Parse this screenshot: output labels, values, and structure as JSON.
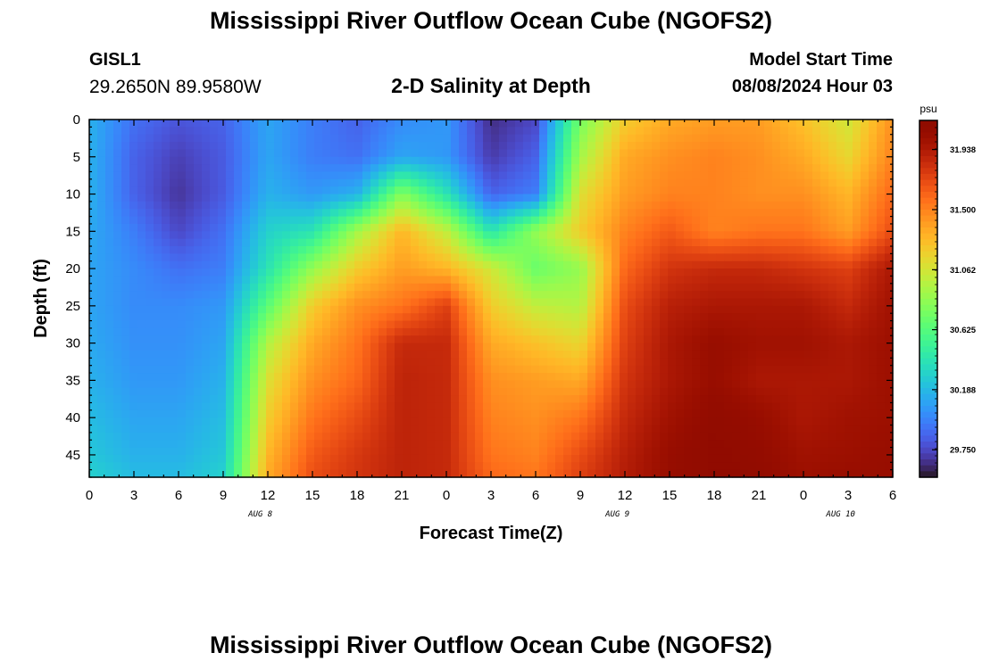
{
  "page": {
    "title": "Mississippi River Outflow Ocean Cube (NGOFS2)",
    "station": "GISL1",
    "coordinates": "29.2650N  89.9580W",
    "subtitle": "2-D Salinity at Depth",
    "model_start_label": "Model Start Time",
    "model_start_value": "08/08/2024 Hour 03",
    "bottom_title": "Mississippi River Outflow Ocean Cube (NGOFS2)"
  },
  "chart_data": {
    "type": "heatmap",
    "title": "2-D Salinity at Depth",
    "xlabel": "Forecast Time(Z)",
    "ylabel": "Depth (ft)",
    "x_tick_labels": [
      "0",
      "3",
      "6",
      "9",
      "12",
      "15",
      "18",
      "21",
      "0",
      "3",
      "6",
      "9",
      "12",
      "15",
      "18",
      "21",
      "0",
      "3",
      "6"
    ],
    "x_date_labels": [
      {
        "label": "AUG 8",
        "hour": 11.5
      },
      {
        "label": "AUG 9",
        "hour": 35.5
      },
      {
        "label": "AUG 10",
        "hour": 50.5
      }
    ],
    "xlim_hours": [
      0,
      54
    ],
    "y_ticks": [
      0,
      5,
      10,
      15,
      20,
      25,
      30,
      35,
      40,
      45
    ],
    "ylim_ft": [
      0,
      48
    ],
    "y_inverted": true,
    "colorbar": {
      "unit": "psu",
      "ticks": [
        "31.938",
        "31.500",
        "31.062",
        "30.625",
        "30.188",
        "29.750"
      ],
      "tick_values": [
        31.938,
        31.5,
        31.062,
        30.625,
        30.188,
        29.75
      ],
      "range": [
        29.55,
        32.15
      ],
      "colormap": "turbo"
    },
    "hours": [
      0,
      3,
      6,
      9,
      12,
      15,
      18,
      21,
      24,
      27,
      30,
      33,
      36,
      39,
      42,
      45,
      48,
      51,
      54
    ],
    "depths_ft": [
      0,
      5,
      10,
      15,
      20,
      25,
      30,
      35,
      40,
      45,
      48
    ],
    "salinity_psu": [
      [
        30.15,
        29.9,
        29.8,
        29.85,
        30.1,
        29.95,
        29.85,
        30.0,
        30.05,
        29.65,
        29.75,
        30.75,
        31.2,
        31.35,
        31.4,
        31.4,
        31.25,
        31.05,
        31.45
      ],
      [
        30.15,
        29.85,
        29.72,
        29.82,
        30.1,
        29.95,
        29.9,
        30.1,
        30.05,
        29.7,
        29.85,
        30.9,
        31.35,
        31.45,
        31.5,
        31.45,
        31.35,
        31.15,
        31.5
      ],
      [
        30.15,
        29.85,
        29.68,
        29.82,
        30.15,
        30.05,
        30.15,
        30.8,
        30.4,
        29.85,
        29.95,
        31.1,
        31.4,
        31.5,
        31.5,
        31.45,
        31.45,
        31.3,
        31.6
      ],
      [
        30.12,
        29.95,
        29.75,
        29.9,
        30.3,
        30.4,
        30.9,
        31.3,
        31.0,
        30.4,
        30.85,
        31.2,
        31.5,
        31.65,
        31.5,
        31.55,
        31.55,
        31.4,
        31.7
      ],
      [
        30.1,
        30.0,
        29.9,
        29.95,
        30.4,
        30.85,
        31.2,
        31.4,
        31.3,
        31.05,
        30.7,
        30.85,
        31.6,
        31.8,
        31.85,
        31.85,
        31.8,
        31.75,
        31.95
      ],
      [
        30.1,
        30.0,
        30.0,
        30.05,
        30.65,
        31.2,
        31.45,
        31.55,
        31.75,
        31.2,
        31.0,
        30.95,
        31.7,
        31.9,
        31.95,
        31.95,
        31.95,
        31.85,
        32.0
      ],
      [
        30.12,
        30.02,
        30.02,
        30.1,
        30.95,
        31.35,
        31.55,
        31.85,
        31.85,
        31.35,
        31.25,
        31.15,
        31.75,
        31.95,
        32.05,
        32.0,
        32.0,
        31.95,
        32.02
      ],
      [
        30.15,
        30.05,
        30.05,
        30.15,
        31.1,
        31.45,
        31.6,
        31.88,
        31.85,
        31.45,
        31.4,
        31.35,
        31.8,
        31.95,
        32.05,
        31.95,
        31.95,
        31.95,
        32.02
      ],
      [
        30.2,
        30.1,
        30.1,
        30.2,
        31.2,
        31.55,
        31.7,
        31.88,
        31.85,
        31.5,
        31.45,
        31.55,
        31.85,
        32.0,
        32.1,
        32.05,
        31.95,
        32.0,
        32.02
      ],
      [
        30.25,
        30.15,
        30.15,
        30.25,
        31.3,
        31.65,
        31.78,
        31.88,
        31.85,
        31.55,
        31.5,
        31.7,
        31.9,
        32.05,
        32.12,
        32.08,
        32.0,
        32.02,
        32.05
      ],
      [
        30.3,
        30.2,
        30.2,
        30.3,
        31.35,
        31.7,
        31.8,
        31.88,
        31.85,
        31.6,
        31.55,
        31.75,
        31.92,
        32.05,
        32.12,
        32.1,
        32.02,
        32.05,
        32.05
      ]
    ]
  }
}
